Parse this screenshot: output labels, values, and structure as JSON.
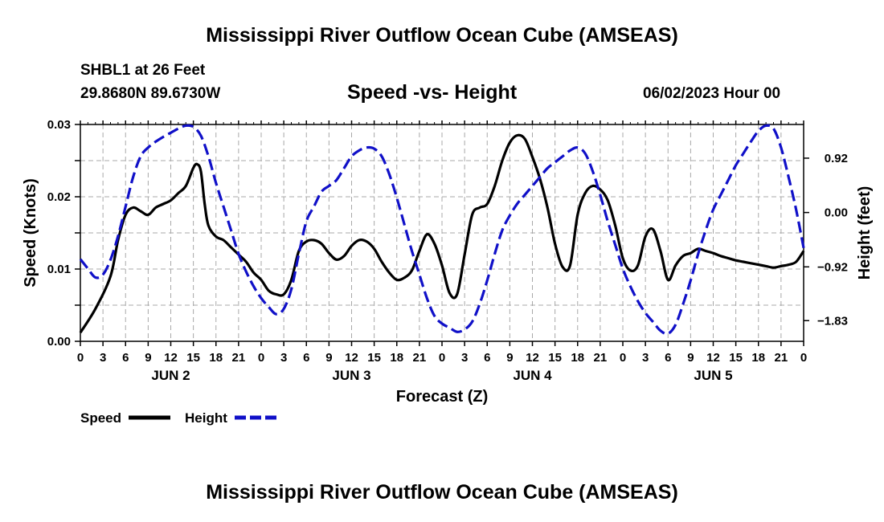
{
  "header": {
    "title": "Mississippi River Outflow Ocean Cube (AMSEAS)",
    "station": "SHBL1 at 26 Feet",
    "coords": "29.8680N  89.6730W",
    "subtitle": "Speed -vs- Height",
    "datetime": "06/02/2023 Hour 00"
  },
  "footer": {
    "title": "Mississippi River Outflow Ocean Cube (AMSEAS)"
  },
  "chart_data": {
    "type": "line",
    "title": "Speed -vs- Height",
    "xlabel": "Forecast (Z)",
    "ylabel": "Speed (Knots)",
    "y2label": "Height (feet)",
    "xlim": [
      0,
      96
    ],
    "ylim": [
      0.0,
      0.03
    ],
    "y2lim": [
      -2.18,
      1.49
    ],
    "x_ticks": [
      0,
      3,
      6,
      9,
      12,
      15,
      18,
      21,
      24,
      27,
      30,
      33,
      36,
      39,
      42,
      45,
      48,
      51,
      54,
      57,
      60,
      63,
      66,
      69,
      72,
      75,
      78,
      81,
      84,
      87,
      90,
      93,
      96
    ],
    "x_tick_labels": [
      "0",
      "3",
      "6",
      "9",
      "12",
      "15",
      "18",
      "21",
      "0",
      "3",
      "6",
      "9",
      "12",
      "15",
      "18",
      "21",
      "0",
      "3",
      "6",
      "9",
      "12",
      "15",
      "18",
      "21",
      "0",
      "3",
      "6",
      "9",
      "12",
      "15",
      "18",
      "21",
      "0"
    ],
    "day_labels": [
      {
        "label": "JUN 2",
        "x": 12
      },
      {
        "label": "JUN 3",
        "x": 36
      },
      {
        "label": "JUN 4",
        "x": 60
      },
      {
        "label": "JUN 5",
        "x": 84
      }
    ],
    "y_ticks": [
      0.0,
      0.005,
      0.01,
      0.015,
      0.02,
      0.025,
      0.03
    ],
    "y_tick_labels": [
      "0.00",
      "",
      "0.01",
      "",
      "0.02",
      "",
      "0.03"
    ],
    "y2_ticks": [
      -1.83,
      -0.92,
      0.0,
      0.92
    ],
    "y2_tick_labels": [
      "−1.83",
      "−0.92",
      "0.00",
      "0.92"
    ],
    "grid": true,
    "legend": [
      {
        "name": "Speed",
        "color": "#000000",
        "dash": "solid"
      },
      {
        "name": "Height",
        "color": "#1010c8",
        "dash": "dashed"
      }
    ],
    "series": [
      {
        "name": "Speed",
        "axis": "left",
        "color": "#000000",
        "x": [
          0,
          2,
          4,
          5,
          6,
          7,
          8,
          9,
          10,
          11,
          12,
          13,
          14,
          15,
          15.5,
          16,
          16.5,
          17,
          18,
          19,
          20,
          21,
          22,
          23,
          24,
          25,
          26,
          27,
          28,
          29,
          30,
          31,
          32,
          33,
          34,
          35,
          36,
          37,
          38,
          39,
          40,
          41,
          42,
          43,
          44,
          45,
          46,
          47,
          48,
          49,
          50,
          51,
          52,
          53,
          54,
          55,
          56,
          57,
          58,
          59,
          60,
          61,
          62,
          63,
          64,
          65,
          66,
          67,
          68,
          69,
          70,
          71,
          72,
          73,
          74,
          75,
          76,
          77,
          78,
          79,
          80,
          81,
          82,
          83,
          84,
          85,
          86,
          87,
          88,
          89,
          90,
          91,
          92,
          93,
          94,
          95,
          96
        ],
        "values": [
          0.0012,
          0.0045,
          0.009,
          0.014,
          0.0175,
          0.0185,
          0.018,
          0.0175,
          0.0185,
          0.019,
          0.0195,
          0.0205,
          0.0215,
          0.024,
          0.0245,
          0.0235,
          0.019,
          0.016,
          0.0145,
          0.014,
          0.013,
          0.012,
          0.011,
          0.0095,
          0.0085,
          0.007,
          0.0065,
          0.0065,
          0.0085,
          0.0125,
          0.0138,
          0.014,
          0.0135,
          0.0122,
          0.0113,
          0.0118,
          0.0132,
          0.014,
          0.0138,
          0.0128,
          0.011,
          0.0095,
          0.0085,
          0.0088,
          0.0098,
          0.0125,
          0.0148,
          0.0135,
          0.0105,
          0.0067,
          0.0065,
          0.012,
          0.0175,
          0.0185,
          0.019,
          0.0215,
          0.025,
          0.0275,
          0.0285,
          0.028,
          0.0255,
          0.0225,
          0.0185,
          0.0135,
          0.0103,
          0.0105,
          0.0175,
          0.0205,
          0.0215,
          0.021,
          0.0195,
          0.016,
          0.0115,
          0.0098,
          0.0105,
          0.0145,
          0.0155,
          0.0125,
          0.0085,
          0.0105,
          0.0118,
          0.0122,
          0.0128,
          0.0125,
          0.0122,
          0.0118,
          0.0115,
          0.0112,
          0.011,
          0.0108,
          0.0106,
          0.0104,
          0.0102,
          0.0104,
          0.0106,
          0.011,
          0.0125
        ]
      },
      {
        "name": "Height",
        "axis": "right",
        "color": "#1010c8",
        "x": [
          0,
          1,
          2,
          3,
          4,
          5,
          6,
          7,
          8,
          9,
          10,
          11,
          12,
          13,
          14,
          15,
          16,
          17,
          18,
          19,
          20,
          21,
          22,
          23,
          24,
          25,
          26,
          27,
          28,
          29,
          30,
          31,
          32,
          33,
          34,
          35,
          36,
          37,
          38,
          39,
          40,
          41,
          42,
          43,
          44,
          45,
          46,
          47,
          48,
          49,
          50,
          51,
          52,
          53,
          54,
          55,
          56,
          57,
          58,
          59,
          60,
          61,
          62,
          63,
          64,
          65,
          66,
          67,
          68,
          69,
          70,
          71,
          72,
          73,
          74,
          75,
          76,
          77,
          78,
          79,
          80,
          81,
          82,
          83,
          84,
          85,
          86,
          87,
          88,
          89,
          90,
          91,
          92,
          93,
          94,
          95,
          96
        ],
        "values": [
          -0.79,
          -0.95,
          -1.1,
          -1.05,
          -0.8,
          -0.4,
          0.1,
          0.6,
          0.95,
          1.1,
          1.2,
          1.28,
          1.35,
          1.42,
          1.47,
          1.45,
          1.3,
          0.95,
          0.5,
          0.1,
          -0.3,
          -0.7,
          -1.0,
          -1.25,
          -1.45,
          -1.6,
          -1.72,
          -1.63,
          -1.3,
          -0.7,
          -0.15,
          0.1,
          0.35,
          0.45,
          0.55,
          0.75,
          0.95,
          1.05,
          1.1,
          1.08,
          0.95,
          0.65,
          0.25,
          -0.2,
          -0.65,
          -1.05,
          -1.45,
          -1.75,
          -1.88,
          -1.95,
          -2.02,
          -1.98,
          -1.85,
          -1.55,
          -1.15,
          -0.7,
          -0.3,
          -0.05,
          0.15,
          0.3,
          0.45,
          0.6,
          0.75,
          0.85,
          0.95,
          1.05,
          1.1,
          1.0,
          0.7,
          0.3,
          -0.15,
          -0.55,
          -0.95,
          -1.25,
          -1.5,
          -1.7,
          -1.85,
          -2.0,
          -2.05,
          -1.9,
          -1.55,
          -1.15,
          -0.7,
          -0.3,
          0.05,
          0.3,
          0.55,
          0.8,
          1.0,
          1.2,
          1.38,
          1.47,
          1.42,
          1.1,
          0.6,
          0.05,
          -0.6
        ]
      }
    ]
  }
}
